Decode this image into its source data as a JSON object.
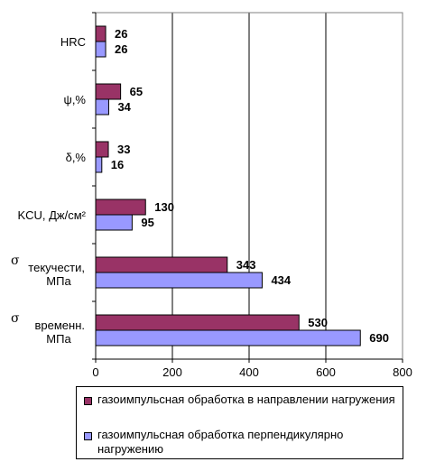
{
  "chart_data": {
    "type": "bar",
    "orientation": "horizontal",
    "categories": [
      "HRC",
      "ψ,%",
      "δ,%",
      "KCU, Дж/см²",
      "σ текучести, МПа",
      "σ временн. МПа"
    ],
    "category_display": [
      {
        "symbol": "",
        "lines": [
          "HRC"
        ]
      },
      {
        "symbol": "",
        "lines": [
          "ψ,%"
        ]
      },
      {
        "symbol": "",
        "lines": [
          "δ,%"
        ]
      },
      {
        "symbol": "",
        "lines": [
          "KCU, Дж/см²"
        ]
      },
      {
        "symbol": "σ",
        "lines": [
          "текучести,",
          "МПа"
        ]
      },
      {
        "symbol": "σ",
        "lines": [
          "временн.",
          "МПа"
        ]
      }
    ],
    "series": [
      {
        "name": "газоимпульсная обработка в направлении нагружения",
        "values": [
          26,
          65,
          33,
          130,
          343,
          530
        ],
        "color": "#993366"
      },
      {
        "name": "газоимпульсная обработка перпендикулярно нагружению",
        "values": [
          26,
          34,
          16,
          95,
          434,
          690
        ],
        "color": "#9999ff"
      }
    ],
    "xlim": [
      0,
      800
    ],
    "xticks": [
      0,
      200,
      400,
      600,
      800
    ],
    "grid": true,
    "legend_position": "bottom",
    "title": "",
    "xlabel": "",
    "ylabel": ""
  }
}
